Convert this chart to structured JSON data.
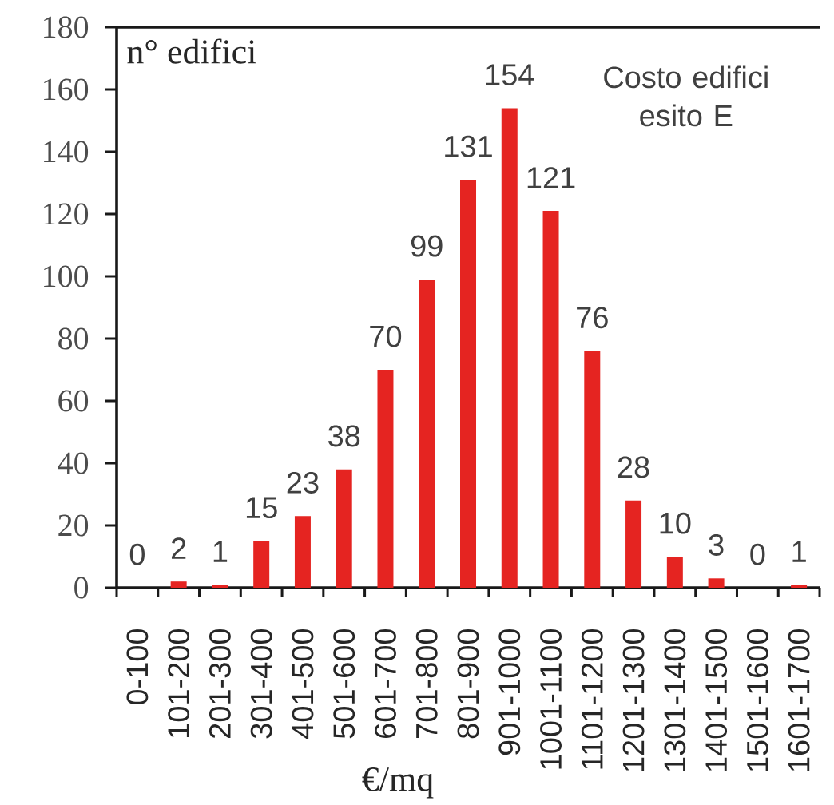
{
  "chart_data": {
    "type": "bar",
    "title": "Costo edifici esito E",
    "xlabel": "€/mq",
    "ylabel": "n° edifici",
    "categories": [
      "0-100",
      "101-200",
      "201-300",
      "301-400",
      "401-500",
      "501-600",
      "601-700",
      "701-800",
      "801-900",
      "901-1000",
      "1001-1100",
      "1101-1200",
      "1201-1300",
      "1301-1400",
      "1401-1500",
      "1501-1600",
      "1601-1700"
    ],
    "values": [
      0,
      2,
      1,
      15,
      23,
      38,
      70,
      99,
      131,
      154,
      121,
      76,
      28,
      10,
      3,
      0,
      1
    ],
    "color": "#e52421",
    "ylim": [
      0,
      180
    ],
    "yticks": [
      0,
      20,
      40,
      60,
      80,
      100,
      120,
      140,
      160,
      180
    ],
    "data_labels": true
  }
}
